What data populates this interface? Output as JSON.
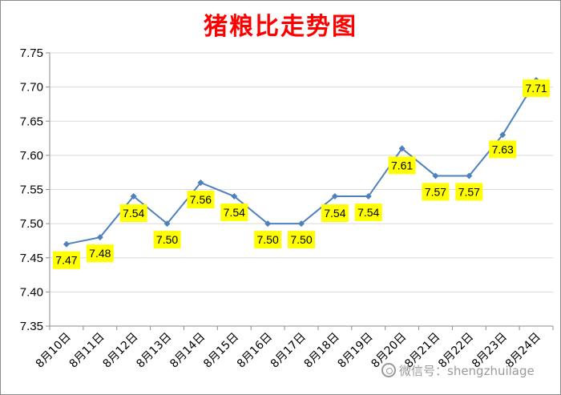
{
  "chart_data": {
    "type": "line",
    "title": "猪粮比走势图",
    "categories": [
      "8月10日",
      "8月11日",
      "8月12日",
      "8月13日",
      "8月14日",
      "8月15日",
      "8月16日",
      "8月17日",
      "8月18日",
      "8月19日",
      "8月20日",
      "8月21日",
      "8月22日",
      "8月23日",
      "8月24日"
    ],
    "series": [
      {
        "values": [
          7.47,
          7.48,
          7.54,
          7.5,
          7.56,
          7.54,
          7.5,
          7.5,
          7.54,
          7.54,
          7.61,
          7.57,
          7.57,
          7.63,
          7.71
        ]
      }
    ],
    "data_labels": [
      "7.47",
      "7.48",
      "7.54",
      "7.50",
      "7.56",
      "7.54",
      "7.50",
      "7.50",
      "7.54",
      "7.54",
      "7.61",
      "7.57",
      "7.57",
      "7.63",
      "7.71"
    ],
    "yticks": [
      "7.35",
      "7.40",
      "7.45",
      "7.50",
      "7.55",
      "7.60",
      "7.65",
      "7.70",
      "7.75"
    ],
    "ylim": [
      7.35,
      7.75
    ],
    "xlabel": "",
    "ylabel": "",
    "grid": true,
    "legend": "none",
    "colors": {
      "line": "#4f81bd",
      "title": "#ff0000",
      "label_bg": "#ffff00",
      "grid": "#d9d9d9"
    }
  },
  "watermark": "微信号：shengzhuilage"
}
